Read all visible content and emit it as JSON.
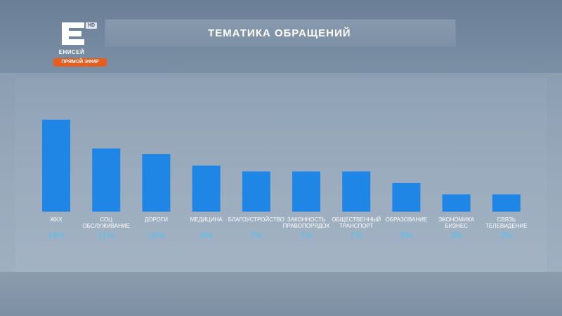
{
  "header": {
    "title": "ТЕМАТИКА ОБРАЩЕНИЙ",
    "logo_hd": "HD",
    "logo_name": "ЕНИСЕЙ",
    "live_label": "ПРЯМОЙ ЭФИР"
  },
  "colors": {
    "bar": "#1f86e6",
    "value_label": "#4fc3f0",
    "live_badge": "#e85d1e"
  },
  "chart_data": {
    "type": "bar",
    "title": "ТЕМАТИКА ОБРАЩЕНИЙ",
    "categories": [
      [
        "ЖКХ"
      ],
      [
        "СОЦ",
        "ОБСЛУЖИВАНИЕ"
      ],
      [
        "ДОРОГИ"
      ],
      [
        "МЕДИЦИНА"
      ],
      [
        "БЛАГОУСТРОЙСТВО"
      ],
      [
        "ЗАКОННОСТЬ",
        "ПРАВОПОРЯДОК"
      ],
      [
        "ОБЩЕСТВЕННЫЙ",
        "ТРАНСПОРТ"
      ],
      [
        "ОБРАЗОВАНИЕ"
      ],
      [
        "ЭКОНОМИКА",
        "БИЗНЕС"
      ],
      [
        "СВЯЗЬ",
        "ТЕЛЕВИДЕНИЕ"
      ]
    ],
    "values": [
      16,
      11,
      10,
      8,
      7,
      7,
      7,
      5,
      3,
      3
    ],
    "value_labels": [
      "16%",
      "11%",
      "10%",
      "8%",
      "7%",
      "7%",
      "7%",
      "5%",
      "3%",
      "3%"
    ],
    "unit": "%",
    "grid": false,
    "legend": "none"
  }
}
